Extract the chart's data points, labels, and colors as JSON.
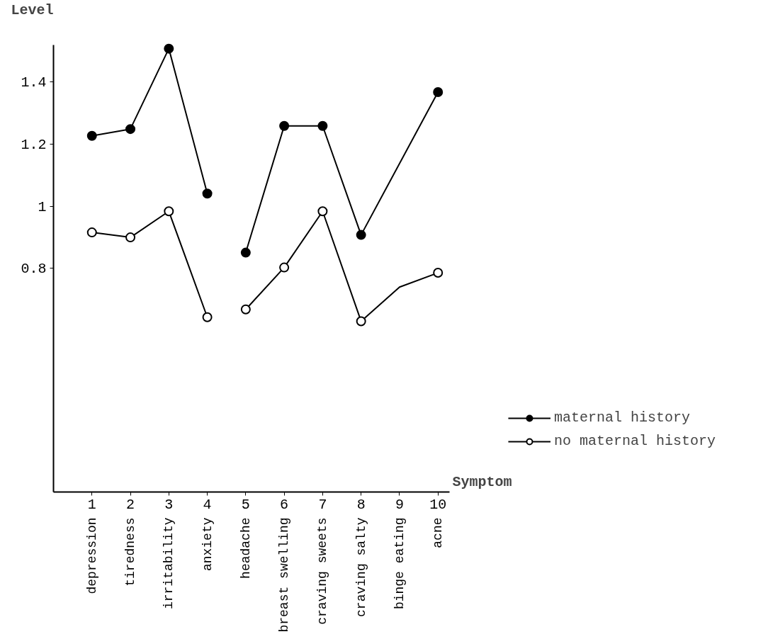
{
  "chart_data": {
    "type": "line",
    "ylabel": "Level",
    "xlabel": "Symptom",
    "annotations": [
      "depression",
      "tiredness",
      "irritability",
      "anxiety",
      "headache",
      "breast swelling",
      "craving sweets",
      "craving salty",
      "binge eating",
      "acne"
    ],
    "xlim": [
      0,
      10.3
    ],
    "xticks": [
      1,
      2,
      3,
      4,
      5,
      6,
      7,
      8,
      9,
      10
    ],
    "ylim": [
      0.08,
      1.52
    ],
    "yticks": [
      0.8,
      1,
      {
        "value": 1.2,
        "label": "1.2"
      },
      1.4
    ],
    "grid": false,
    "legend": "bottom right",
    "marker": "circle",
    "line_style": "solid",
    "series": [
      {
        "name": "maternal history",
        "color": "#000000",
        "colors": [
          "#000000",
          "#000000",
          "#000000",
          "#000000"
        ],
        "x": [
          1,
          2,
          3,
          4
        ],
        "values": [
          1.227,
          1.249,
          1.508,
          1.041
        ]
      },
      {
        "color": "#000000",
        "colors": [
          "#000000",
          "#000000",
          "#000000",
          "#000000",
          "#000000"
        ],
        "x": [
          5,
          6,
          7,
          8,
          10
        ],
        "values": [
          0.851,
          1.259,
          1.259,
          0.908,
          1.368
        ]
      },
      {
        "name": "no maternal history",
        "color": "#000000",
        "colors": [
          "#ffffff",
          "#ffffff",
          "#ffffff",
          "#ffffff"
        ],
        "x": [
          1,
          2,
          3,
          4
        ],
        "values": [
          0.916,
          0.9,
          0.984,
          0.643
        ]
      },
      {
        "color": "#000000",
        "colors": [
          "#ffffff",
          "#ffffff",
          "#ffffff",
          "#ffffff",
          null,
          "#ffffff"
        ],
        "x": [
          5,
          6,
          7,
          8,
          9,
          10
        ],
        "values": [
          0.668,
          0.803,
          0.984,
          0.63,
          0.74,
          0.786
        ]
      }
    ]
  }
}
